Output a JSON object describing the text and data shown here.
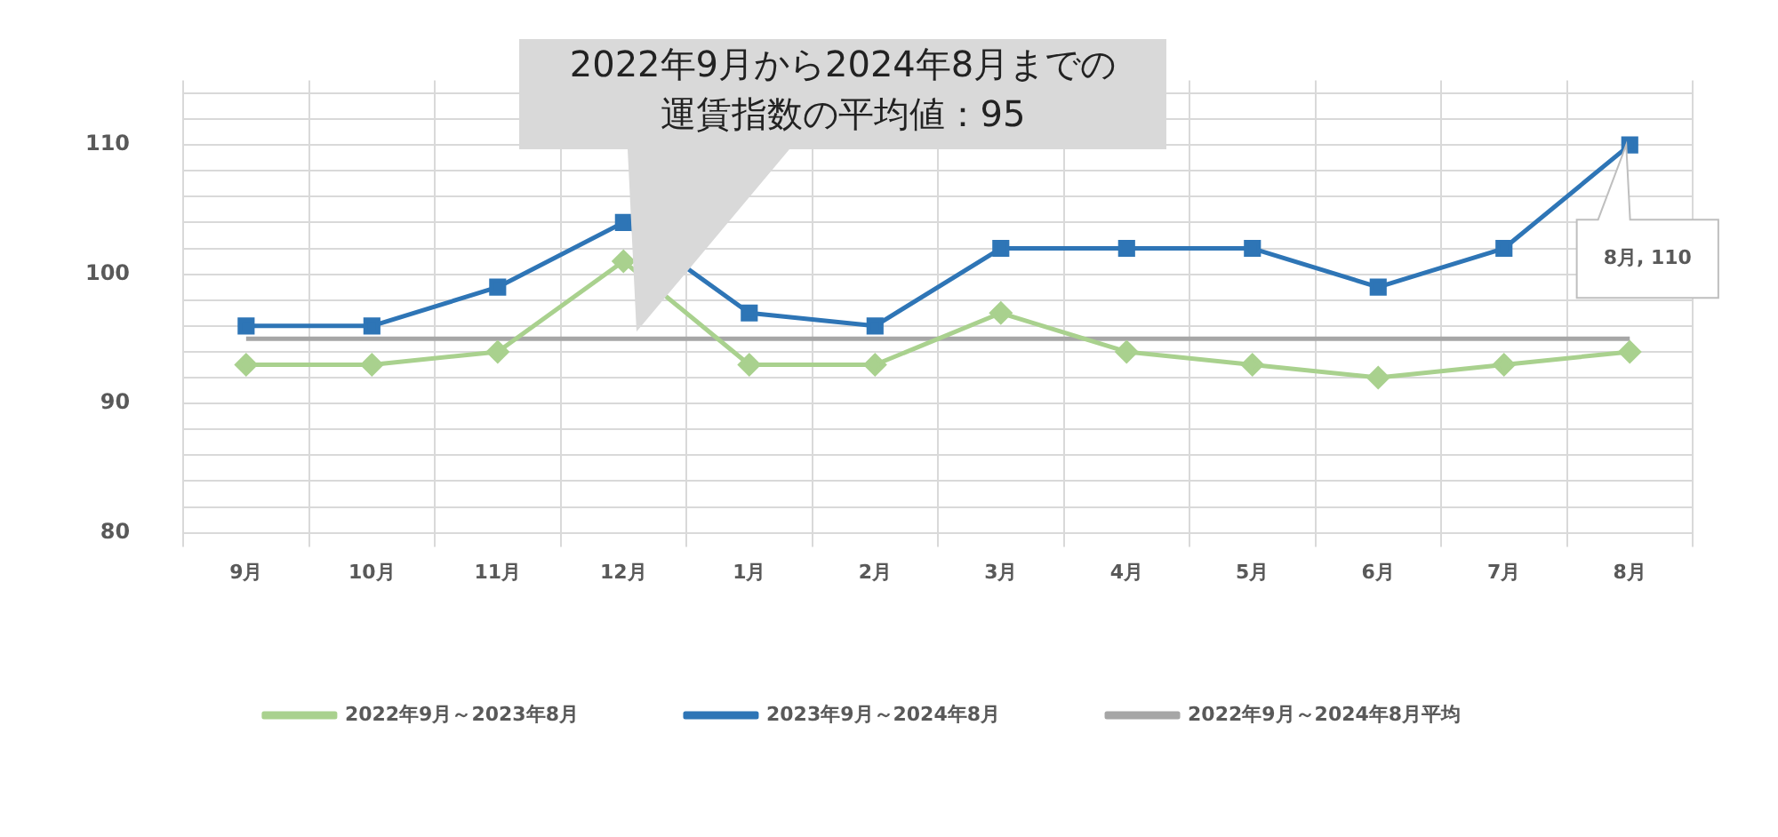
{
  "chart_data": {
    "type": "line",
    "categories": [
      "9月",
      "10月",
      "11月",
      "12月",
      "1月",
      "2月",
      "3月",
      "4月",
      "5月",
      "6月",
      "7月",
      "8月"
    ],
    "series": [
      {
        "name": "2022年9月～2023年8月",
        "color": "#a9d18e",
        "marker": "diamond",
        "values": [
          93,
          93,
          94,
          101,
          93,
          93,
          97,
          94,
          93,
          92,
          93,
          94
        ]
      },
      {
        "name": "2023年9月～2024年8月",
        "color": "#2e75b6",
        "marker": "square",
        "values": [
          96,
          96,
          99,
          104,
          97,
          96,
          102,
          102,
          102,
          99,
          102,
          110
        ]
      },
      {
        "name": "2022年9月～2024年8月平均",
        "color": "#a6a6a6",
        "marker": "none",
        "values": [
          95,
          95,
          95,
          95,
          95,
          95,
          95,
          95,
          95,
          95,
          95,
          95
        ]
      }
    ],
    "ylim": [
      80,
      115
    ],
    "yticks": [
      80,
      {
        "value": 82,
        "label": null
      },
      {
        "value": 84,
        "label": null
      },
      {
        "value": 86,
        "label": null
      },
      {
        "value": 88,
        "label": null
      },
      90,
      {
        "value": 92,
        "label": null
      },
      {
        "value": 94,
        "label": null
      },
      {
        "value": 96,
        "label": null
      },
      {
        "value": 98,
        "label": null
      },
      100,
      {
        "value": 102,
        "label": null
      },
      {
        "value": 104,
        "label": null
      },
      {
        "value": 106,
        "label": null
      },
      {
        "value": 108,
        "label": null
      },
      110,
      {
        "value": 112,
        "label": null
      },
      {
        "value": 114,
        "label": null
      }
    ],
    "grid": true,
    "legend": "bottom",
    "line_style": "solid",
    "annotations": [
      "2022年9月から2024年8月までの",
      "運賃指数の平均値：95",
      "8月, 110"
    ]
  }
}
